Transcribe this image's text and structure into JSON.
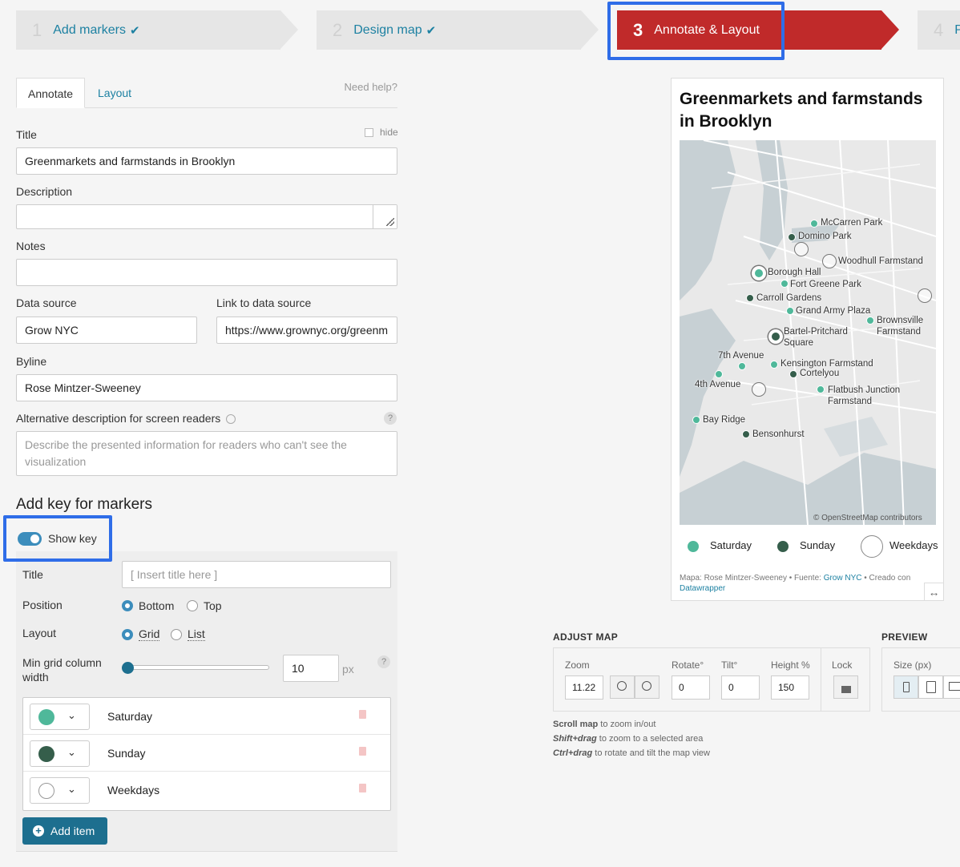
{
  "steps": [
    {
      "num": "1",
      "label": "Add markers",
      "check": "✔"
    },
    {
      "num": "2",
      "label": "Design map",
      "check": "✔"
    },
    {
      "num": "3",
      "label": "Annotate & Layout"
    },
    {
      "num": "4",
      "label": "P"
    }
  ],
  "tabs": {
    "annotate": "Annotate",
    "layout": "Layout",
    "help": "Need help?"
  },
  "form": {
    "title_label": "Title",
    "hide_label": "hide",
    "title_value": "Greenmarkets and farmstands in Brooklyn",
    "description_label": "Description",
    "notes_label": "Notes",
    "source_label": "Data source",
    "source_value": "Grow NYC",
    "link_label": "Link to data source",
    "link_value": "https://www.grownyc.org/greenm",
    "byline_label": "Byline",
    "byline_value": "Rose Mintzer-Sweeney",
    "alt_label": "Alternative description for screen readers",
    "alt_placeholder": "Describe the presented information for readers who can't see the visualization",
    "qmark": "?"
  },
  "key": {
    "heading": "Add key for markers",
    "show_key": "Show key",
    "title_label": "Title",
    "title_placeholder": "[ Insert title here ]",
    "position_label": "Position",
    "bottom": "Bottom",
    "top": "Top",
    "layout_label": "Layout",
    "grid": "Grid",
    "list": "List",
    "min_grid_label": "Min grid column width",
    "min_grid_value": "10",
    "px": "px",
    "items": [
      {
        "name": "Saturday",
        "color": "#4fb89a"
      },
      {
        "name": "Sunday",
        "color": "#355e4b"
      },
      {
        "name": "Weekdays",
        "color": "#ffffff"
      }
    ],
    "add_item": "Add item"
  },
  "chart": {
    "title": "Greenmarkets and farmstands in Brooklyn",
    "osm": "© OpenStreetMap contributors",
    "markers": [
      {
        "name": "McCarren Park",
        "type": "saturday"
      },
      {
        "name": "Domino Park",
        "type": "sunday"
      },
      {
        "name": "Woodhull Farmstand",
        "type": "weekdays"
      },
      {
        "name": "Borough Hall",
        "type": "saturday"
      },
      {
        "name": "Fort Greene Park",
        "type": "saturday"
      },
      {
        "name": "Carroll Gardens",
        "type": "sunday"
      },
      {
        "name": "Grand Army Plaza",
        "type": "saturday"
      },
      {
        "name": "Brownsville Farmstand",
        "type": "saturday"
      },
      {
        "name": "Bartel-Pritchard Square",
        "type": "sunday"
      },
      {
        "name": "7th Avenue",
        "type": "saturday"
      },
      {
        "name": "Kensington Farmstand",
        "type": "saturday"
      },
      {
        "name": "Cortelyou",
        "type": "sunday"
      },
      {
        "name": "4th Avenue",
        "type": "saturday"
      },
      {
        "name": "Flatbush Junction Farmstand",
        "type": "saturday"
      },
      {
        "name": "Bay Ridge",
        "type": "saturday"
      },
      {
        "name": "Bensonhurst",
        "type": "sunday"
      }
    ],
    "legend": [
      "Saturday",
      "Sunday",
      "Weekdays"
    ],
    "footer_prefix": "Mapa: Rose Mintzer-Sweeney • Fuente: ",
    "footer_source": "Grow NYC",
    "footer_mid": " • Creado con ",
    "footer_dw": "Datawrapper"
  },
  "adjust": {
    "heading": "ADJUST MAP",
    "zoom_label": "Zoom",
    "zoom": "11.22",
    "rotate_label": "Rotate°",
    "rotate": "0",
    "tilt_label": "Tilt°",
    "tilt": "0",
    "height_label": "Height %",
    "height": "150",
    "lock_label": "Lock",
    "hint1_b": "Scroll map",
    "hint1": " to zoom in/out",
    "hint2_b": "Shift+drag",
    "hint2": " to zoom to a selected area",
    "hint3_b": "Ctrl+drag",
    "hint3": " to rotate and tilt the map view"
  },
  "preview": {
    "heading": "PREVIEW",
    "size_label": "Size (px)"
  },
  "colors": {
    "accent": "#1d81a2",
    "active_step": "#c02a2a",
    "highlight": "#2f6de8",
    "saturday": "#4fb89a",
    "sunday": "#355e4b"
  }
}
